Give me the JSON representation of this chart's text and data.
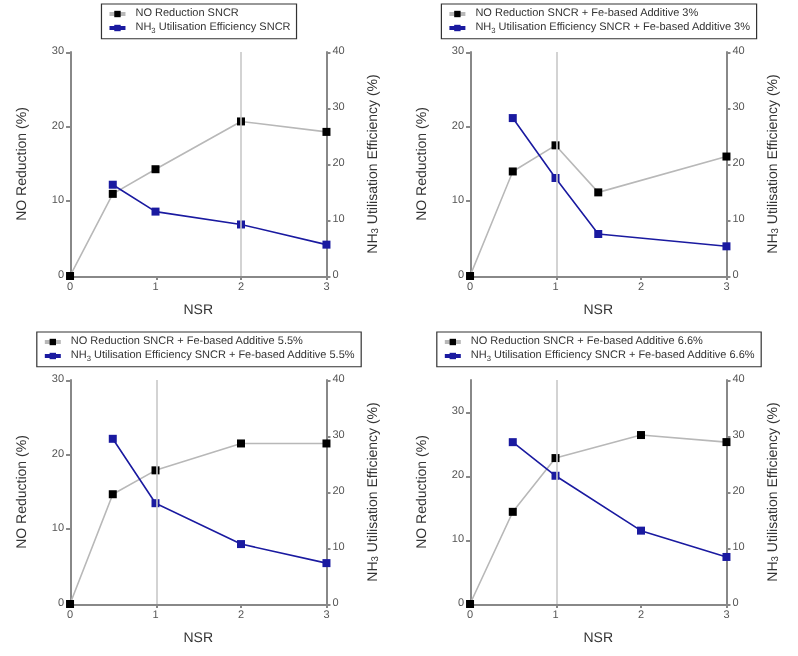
{
  "chart_data": [
    {
      "type": "line",
      "xlabel": "NSR",
      "ylabel": "NO Reduction (%)",
      "y2label": "NH$_{3}$ Utilisation Efficiency (%)",
      "xlim": [
        0,
        3
      ],
      "xticks": [
        0,
        1,
        2,
        3
      ],
      "ylim": [
        0,
        30
      ],
      "yticks": [
        0,
        10,
        20,
        30
      ],
      "y2lim": [
        0,
        40
      ],
      "y2ticks": [
        0,
        10,
        20,
        30,
        40
      ],
      "legend": "top",
      "grid": false,
      "marker": "square",
      "ref_lines": [
        {
          "axis": "x",
          "value": 2,
          "color": "#c8c8c8"
        }
      ],
      "series": [
        {
          "name": "NO Reduction SNCR",
          "color": "#000000",
          "x": [
            0,
            0.5,
            1,
            2,
            3
          ],
          "values": [
            0,
            11,
            14.3,
            20.7,
            19.3
          ]
        },
        {
          "name": "NH$_{3}$ Utilisation Efficiency SNCR",
          "color": "#1a1aa0",
          "axis": "y2",
          "x": [
            0.5,
            1,
            2,
            3
          ],
          "values": [
            16.3,
            11.5,
            9.2,
            5.6
          ]
        }
      ]
    },
    {
      "type": "line",
      "xlabel": "NSR",
      "ylabel": "NO Reduction (%)",
      "y2label": "NH$_{3}$ Utilisation Efficiency (%)",
      "xlim": [
        0,
        3
      ],
      "xticks": [
        0,
        1,
        2,
        3
      ],
      "ylim": [
        0,
        30
      ],
      "yticks": [
        0,
        10,
        20,
        30
      ],
      "y2lim": [
        0,
        40
      ],
      "y2ticks": [
        0,
        10,
        20,
        30,
        40
      ],
      "legend": "top",
      "grid": false,
      "marker": "square",
      "ref_lines": [
        {
          "axis": "x",
          "value": 1,
          "color": "#c8c8c8"
        }
      ],
      "series": [
        {
          "name": "NO Reduction SNCR + Fe-based Additive 3%",
          "color": "#000000",
          "x": [
            0,
            0.5,
            1,
            1.5,
            3
          ],
          "values": [
            0,
            14,
            17.5,
            11.2,
            16
          ]
        },
        {
          "name": "NH$_{3}$ Utilisation Efficiency SNCR + Fe-based Additive 3%",
          "color": "#1a1aa0",
          "axis": "y2",
          "x": [
            0.5,
            1,
            1.5,
            3
          ],
          "values": [
            28.2,
            17.5,
            7.5,
            5.3
          ]
        }
      ]
    },
    {
      "type": "line",
      "xlabel": "NSR",
      "ylabel": "NO Reduction (%)",
      "y2label": "NH$_{3}$ Utilisation Efficiency (%)",
      "xlim": [
        0,
        3
      ],
      "xticks": [
        0,
        1,
        2,
        3
      ],
      "ylim": [
        0,
        30
      ],
      "yticks": [
        0,
        10,
        20,
        30
      ],
      "y2lim": [
        0,
        40
      ],
      "y2ticks": [
        0,
        10,
        20,
        30,
        40
      ],
      "legend": "top",
      "grid": false,
      "marker": "square",
      "ref_lines": [
        {
          "axis": "x",
          "value": 1,
          "color": "#c8c8c8"
        }
      ],
      "series": [
        {
          "name": "NO Reduction SNCR + Fe-based Additive 5.5%",
          "color": "#000000",
          "x": [
            0,
            0.5,
            1,
            2,
            3
          ],
          "values": [
            0,
            14.7,
            17.9,
            21.5,
            21.5
          ]
        },
        {
          "name": "NH$_{3}$ Utilisation Efficiency SNCR + Fe-based Additive 5.5%",
          "color": "#1a1aa0",
          "axis": "y2",
          "x": [
            0.5,
            1,
            2,
            3
          ],
          "values": [
            29.5,
            18,
            10.7,
            7.3
          ]
        }
      ]
    },
    {
      "type": "line",
      "xlabel": "NSR",
      "ylabel": "NO Reduction (%)",
      "y2label": "NH$_{3}$ Utilisation Efficiency (%)",
      "xlim": [
        0,
        3
      ],
      "xticks": [
        0,
        1,
        2,
        3
      ],
      "ylim": [
        0,
        35
      ],
      "yticks": [
        0,
        10,
        20,
        30
      ],
      "y2lim": [
        0,
        40
      ],
      "y2ticks": [
        0,
        10,
        20,
        30,
        40
      ],
      "legend": "top",
      "grid": false,
      "marker": "square",
      "ref_lines": [
        {
          "axis": "x",
          "value": 1,
          "color": "#c8c8c8"
        }
      ],
      "series": [
        {
          "name": "NO Reduction SNCR + Fe-based Additive 6.6%",
          "color": "#000000",
          "x": [
            0,
            0.5,
            1,
            2,
            3
          ],
          "values": [
            0,
            14.4,
            22.8,
            26.4,
            25.3
          ]
        },
        {
          "name": "NH$_{3}$ Utilisation Efficiency SNCR + Fe-based Additive 6.6%",
          "color": "#1a1aa0",
          "axis": "y2",
          "x": [
            0.5,
            1,
            2,
            3
          ],
          "values": [
            28.9,
            22.9,
            13.1,
            8.4
          ]
        }
      ]
    }
  ]
}
